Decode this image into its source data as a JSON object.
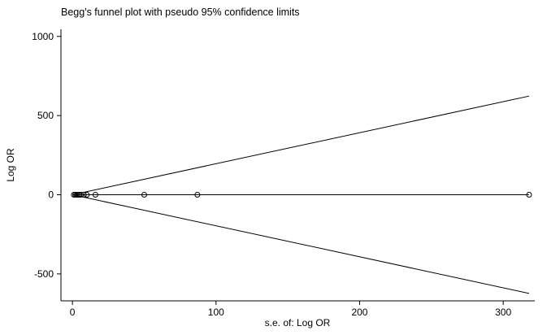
{
  "chart_data": {
    "type": "scatter",
    "title": "Begg's funnel plot with pseudo 95% confidence limits",
    "xlabel": "s.e. of: Log OR",
    "ylabel": "Log OR",
    "xlim": [
      -8,
      322
    ],
    "ylim": [
      -670,
      1045
    ],
    "x_ticks": [
      0,
      100,
      200,
      300
    ],
    "y_ticks": [
      -500,
      0,
      500,
      1000
    ],
    "grid": false,
    "legend": false,
    "axis_color": "#000000",
    "background_color": "#ffffff",
    "point_style": "open-circle",
    "points": {
      "se_log_or": [
        1,
        2,
        3,
        4,
        5,
        6,
        8,
        10,
        16,
        50,
        87,
        318
      ],
      "log_or": [
        0,
        0,
        0,
        0,
        0,
        0,
        0,
        0,
        0,
        0,
        0,
        0
      ]
    },
    "pooled_line": {
      "y": 0,
      "x_start": 0,
      "x_end": 318
    },
    "confidence_lines": [
      {
        "x": [
          0,
          318
        ],
        "y": [
          0,
          623
        ]
      },
      {
        "x": [
          0,
          318
        ],
        "y": [
          0,
          -623
        ]
      }
    ]
  }
}
